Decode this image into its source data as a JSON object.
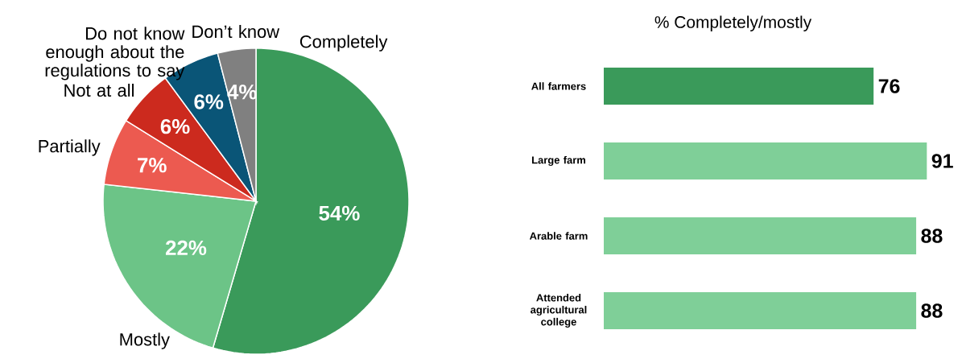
{
  "chart_data": [
    {
      "type": "pie",
      "categories": [
        "Completely",
        "Mostly",
        "Partially",
        "Not at all",
        "Do not know enough about the regulations to say",
        "Don’t know"
      ],
      "values": [
        54,
        22,
        7,
        6,
        6,
        4
      ],
      "colors": [
        "#3a9a5a",
        "#6cc487",
        "#ec5a50",
        "#cc2a1e",
        "#0a5577",
        "#808080"
      ],
      "value_labels": [
        "54%",
        "22%",
        "7%",
        "6%",
        "6%",
        "4%"
      ]
    },
    {
      "type": "bar",
      "orientation": "horizontal",
      "title": "% Completely/mostly",
      "categories": [
        "All farmers",
        "Large farm",
        "Arable farm",
        "Attended agricultural college"
      ],
      "values": [
        76,
        91,
        88,
        88
      ],
      "colors": [
        "#3a9a5a",
        "#7fcf98",
        "#7fcf98",
        "#7fcf98"
      ],
      "data_labels": true
    }
  ]
}
